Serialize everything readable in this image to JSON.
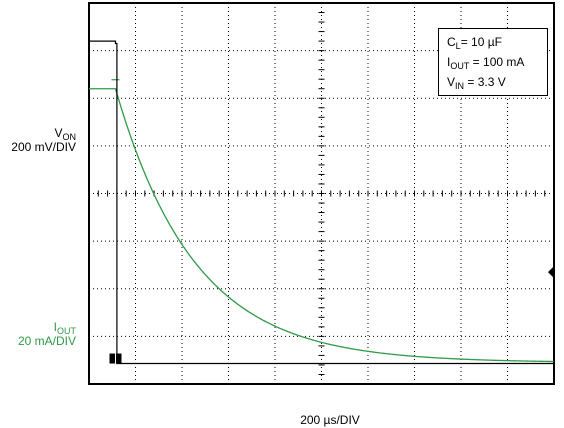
{
  "chart_data": {
    "type": "line",
    "title": "",
    "xlabel": "200 µs/DIV",
    "grid": true,
    "xdivisions": 10,
    "ydivisions": 8,
    "series": [
      {
        "name": "VON",
        "label_main": "V",
        "label_sub": "ON",
        "scale": "200 mV/DIV",
        "color": "#000000",
        "x_div": [
          0.0,
          0.57,
          0.57,
          0.6,
          0.6,
          0.75,
          10.0
        ],
        "y_div": [
          7.2,
          7.2,
          7.15,
          7.15,
          0.43,
          0.43,
          0.43
        ]
      },
      {
        "name": "IOUT",
        "label_main": "I",
        "label_sub": "OUT",
        "scale": "20 mA/DIV",
        "color": "#2f9a48",
        "fall_start_div": 0.57,
        "start_level_div": 6.2,
        "end_level_div": 0.45,
        "time_constant_div": 1.7
      }
    ],
    "legend": {
      "placement": "top-right",
      "lines": [
        {
          "main": "C",
          "sub": "L",
          "rest": "= 10 µF"
        },
        {
          "main": "I",
          "sub": "OUT",
          "rest": " = 100 mA"
        },
        {
          "main": "V",
          "sub": "IN",
          "rest": " = 3.3 V"
        }
      ]
    },
    "ground_marker_div": 2.35
  }
}
